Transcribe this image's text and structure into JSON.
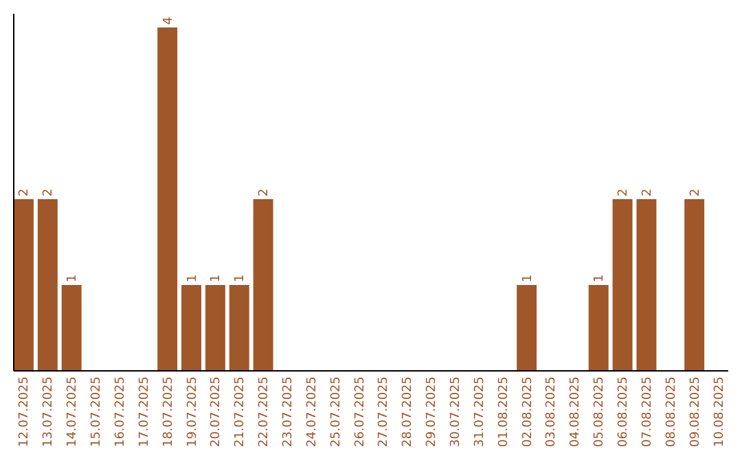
{
  "chart_data": {
    "type": "bar",
    "categories": [
      "12.07.2025",
      "13.07.2025",
      "14.07.2025",
      "15.07.2025",
      "16.07.2025",
      "17.07.2025",
      "18.07.2025",
      "19.07.2025",
      "20.07.2025",
      "21.07.2025",
      "22.07.2025",
      "23.07.2025",
      "24.07.2025",
      "25.07.2025",
      "26.07.2025",
      "27.07.2025",
      "28.07.2025",
      "29.07.2025",
      "30.07.2025",
      "31.07.2025",
      "01.08.2025",
      "02.08.2025",
      "03.08.2025",
      "04.08.2025",
      "05.08.2025",
      "06.08.2025",
      "07.08.2025",
      "08.08.2025",
      "09.08.2025",
      "10.08.2025"
    ],
    "values": [
      2,
      2,
      1,
      0,
      0,
      0,
      4,
      1,
      1,
      1,
      2,
      0,
      0,
      0,
      0,
      0,
      0,
      0,
      0,
      0,
      0,
      1,
      0,
      0,
      1,
      2,
      2,
      0,
      2,
      0
    ],
    "value_labels": [
      "2",
      "2",
      "1",
      null,
      null,
      null,
      "4",
      "1",
      "1",
      "1",
      "2",
      null,
      null,
      null,
      null,
      null,
      null,
      null,
      null,
      null,
      null,
      "1",
      null,
      null,
      "1",
      "2",
      "2",
      null,
      "2",
      null
    ],
    "color": "#a0572a"
  }
}
